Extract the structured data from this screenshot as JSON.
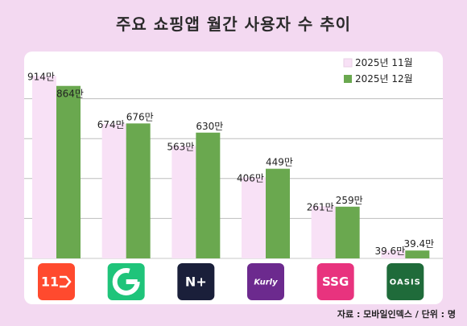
{
  "title": "주요 쇼핑앱 월간 사용자 수 추이",
  "source": "자료 : 모바일인덱스 / 단위 : 명",
  "chart_data": {
    "type": "bar",
    "title": "주요 쇼핑앱 월간 사용자 수 추이",
    "categories": [
      "11st",
      "G",
      "N+",
      "Kurly",
      "SSG",
      "OASIS"
    ],
    "series": [
      {
        "name": "2025년 11월",
        "color": "#f8e1f6",
        "values": [
          914,
          674,
          563,
          406,
          261,
          39.6
        ],
        "labels": [
          "914만",
          "674만",
          "563만",
          "406만",
          "261만",
          "39.6만"
        ]
      },
      {
        "name": "2025년 12월",
        "color": "#6aa84f",
        "values": [
          864,
          676,
          630,
          449,
          259,
          39.4
        ],
        "labels": [
          "864만",
          "676만",
          "630만",
          "449만",
          "259만",
          "39.4만"
        ]
      }
    ],
    "ylim": [
      0,
      1000
    ],
    "legend": "top-right",
    "grid": true
  },
  "logos": [
    {
      "name": "11st-logo",
      "text": "11",
      "bg": "#ff4a2e",
      "fg": "#ffffff"
    },
    {
      "name": "gmarket-logo",
      "text": "G",
      "bg": "#1fc47a",
      "fg": "#ffffff"
    },
    {
      "name": "naver-plus-logo",
      "text": "N+",
      "bg": "#1a1f3a",
      "fg": "#ffffff"
    },
    {
      "name": "kurly-logo",
      "text": "Kurly",
      "bg": "#6c2a8e",
      "fg": "#ffffff"
    },
    {
      "name": "ssg-logo",
      "text": "SSG",
      "bg": "#e8337e",
      "fg": "#ffffff"
    },
    {
      "name": "oasis-logo",
      "text": "OASIS",
      "bg": "#1f6b3a",
      "fg": "#ffffff"
    }
  ]
}
